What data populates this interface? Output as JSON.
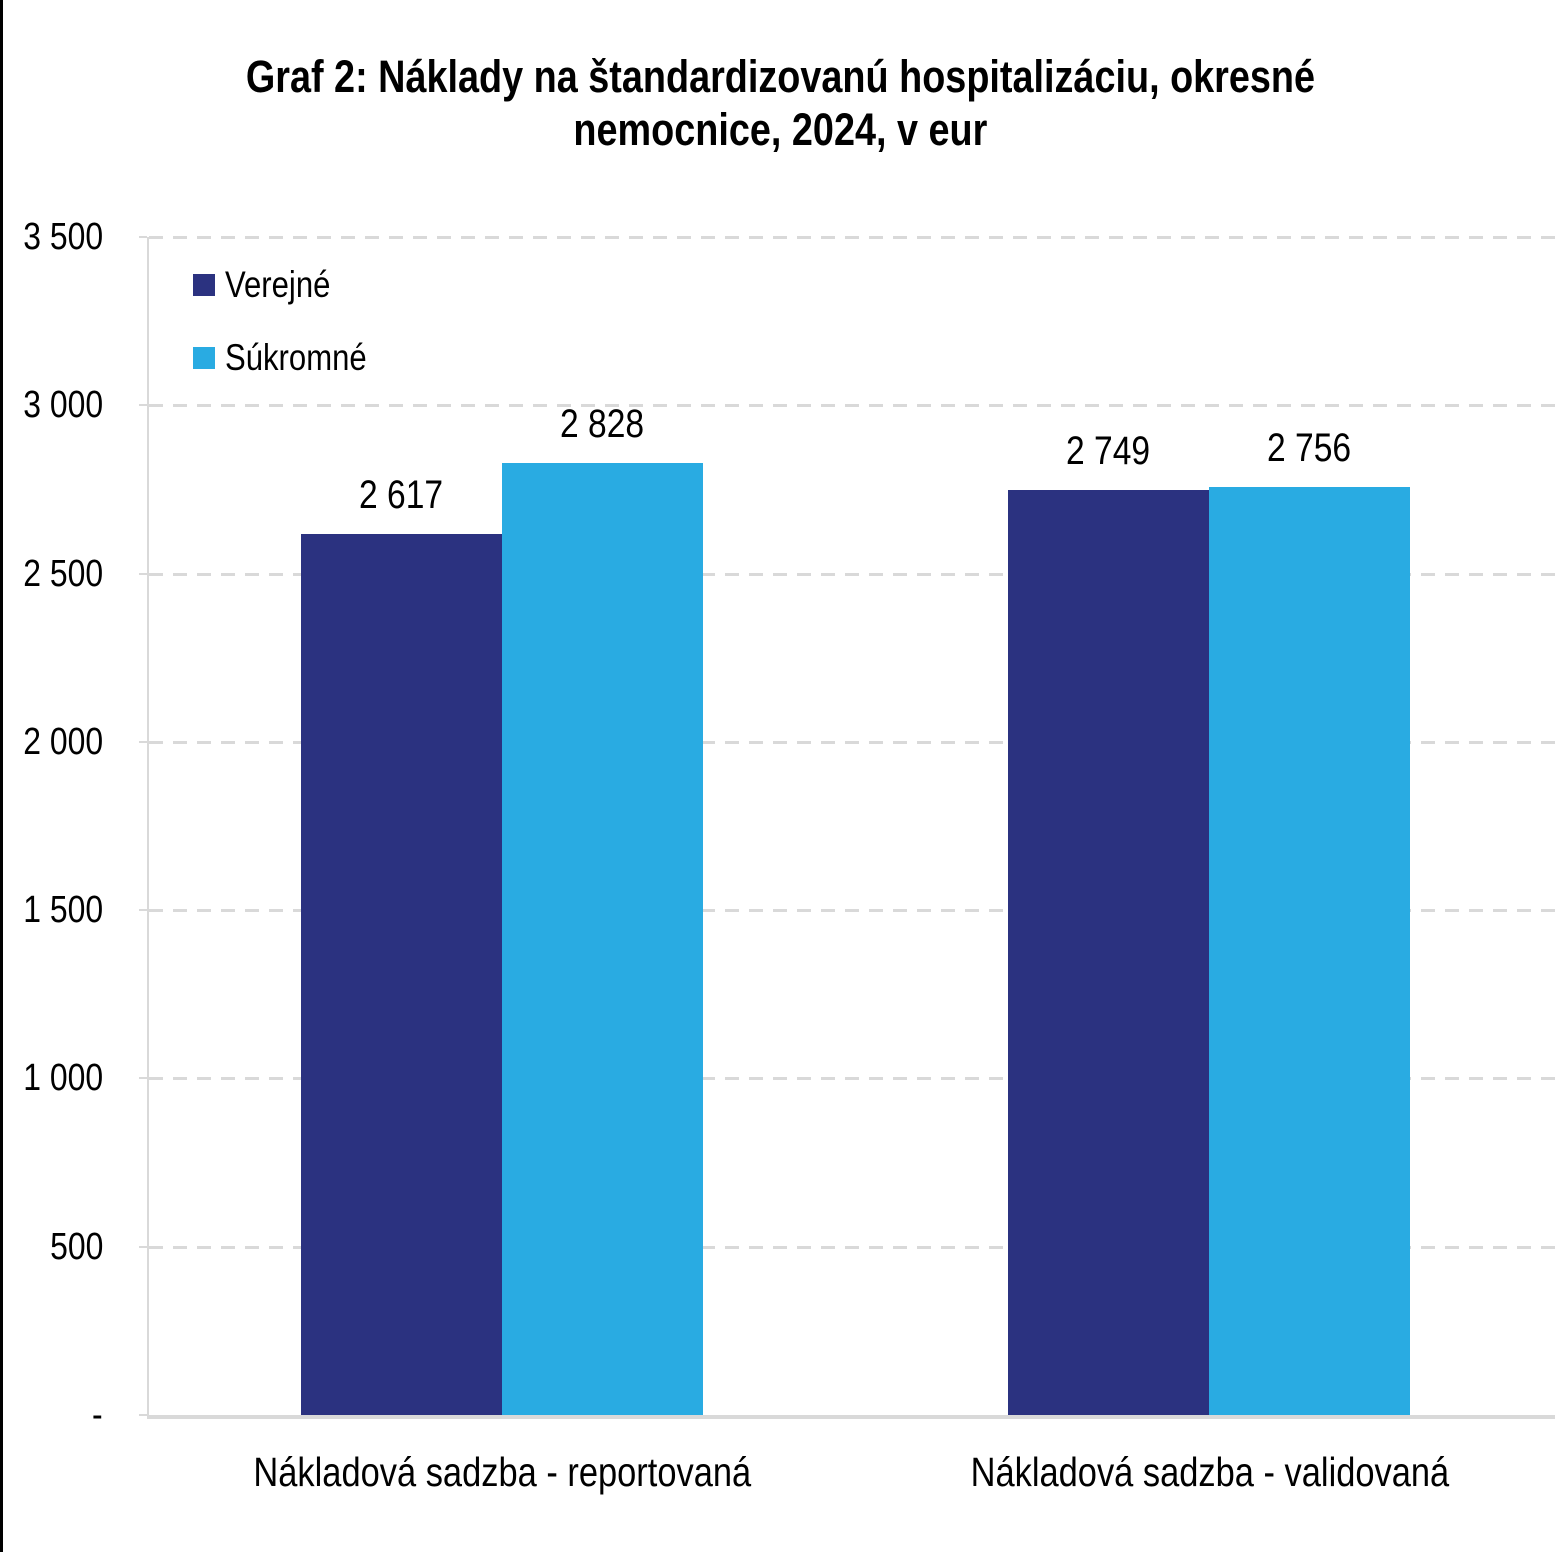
{
  "title": {
    "line1": "Graf 2: Náklady na štandardizovanú hospitalizáciu, okresné",
    "line2": "nemocnice, 2024, v eur"
  },
  "chart_data": {
    "type": "bar",
    "title": "Graf 2: Náklady na štandardizovanú hospitalizáciu, okresné nemocnice, 2024, v eur",
    "unit": "eur",
    "year": "2024",
    "categories": [
      "Nákladová sadzba - reportovaná",
      "Nákladová sadzba - validovaná"
    ],
    "category_keys": [
      "reportovana",
      "validovana"
    ],
    "series": [
      {
        "key": "verejne",
        "name": "Verejné",
        "color": "#2B3280",
        "values": [
          2617,
          2749
        ],
        "value_labels": [
          "2 617",
          "2 749"
        ]
      },
      {
        "key": "sukromne",
        "name": "Súkromné",
        "color": "#29ABE2",
        "values": [
          2828,
          2756
        ],
        "value_labels": [
          "2 828",
          "2 756"
        ]
      }
    ],
    "y_axis": {
      "min": 0,
      "max": 3500,
      "tick_interval": 500,
      "tick_labels": [
        "-",
        "500",
        "1 000",
        "1 500",
        "2 000",
        "2 500",
        "3 000",
        "3 500"
      ]
    },
    "grid": {
      "horizontal": true,
      "style": "dashed",
      "color": "#D9D9D9"
    },
    "axis_line_color": "#D9D9D9",
    "legend_position": "top-left-inside"
  }
}
